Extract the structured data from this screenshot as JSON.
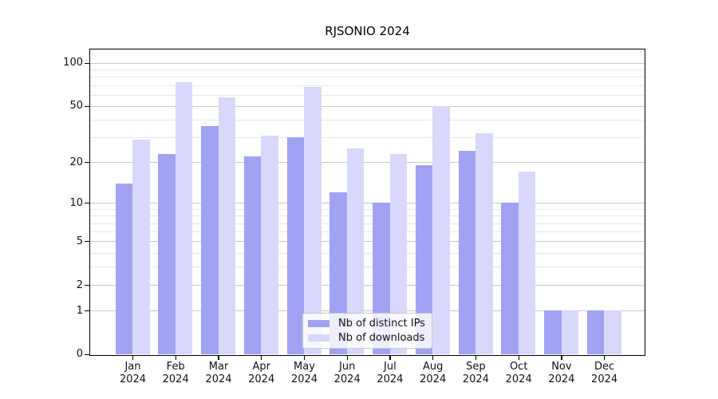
{
  "chart_data": {
    "type": "bar",
    "title": "RJSONIO 2024",
    "categories": [
      "Jan",
      "Feb",
      "Mar",
      "Apr",
      "May",
      "Jun",
      "Jul",
      "Aug",
      "Sep",
      "Oct",
      "Nov",
      "Dec"
    ],
    "year_label": "2024",
    "series": [
      {
        "name": "Nb of distinct IPs",
        "color": "#a2a2f3",
        "values": [
          14,
          23,
          36,
          22,
          30,
          12,
          10,
          19,
          24,
          10,
          1,
          1
        ]
      },
      {
        "name": "Nb of downloads",
        "color": "#d8d8fa",
        "values": [
          29,
          74,
          58,
          31,
          68,
          25,
          23,
          50,
          32,
          17,
          1,
          1
        ]
      }
    ],
    "xlabel": "",
    "ylabel": "",
    "yscale": "log1p",
    "ylim": [
      0,
      124
    ],
    "yticks": [
      0,
      1,
      2,
      5,
      10,
      20,
      50,
      100
    ],
    "minor_yticks": [
      3,
      4,
      6,
      7,
      8,
      9,
      30,
      40,
      60,
      70,
      80,
      90
    ],
    "grid": true,
    "legend_position": "lower center",
    "colors": {
      "axis": "#000000",
      "grid_major": "#c9c9c9",
      "grid_minor": "#e8e8e8",
      "text": "#111111",
      "legend_border": "#cccccc",
      "background": "#ffffff"
    }
  }
}
